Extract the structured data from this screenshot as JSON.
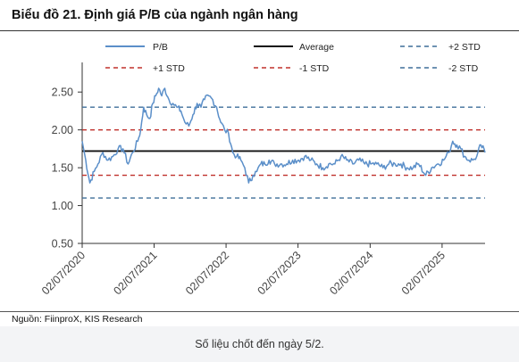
{
  "header": {
    "title": "Biểu đồ 21. Định giá P/B của ngành ngân hàng"
  },
  "source": "Nguồn: FiinproX, KIS Research",
  "caption": "Số liệu chốt đến ngày 5/2.",
  "colors": {
    "pb": "#5b8fc9",
    "average": "#111111",
    "plus2std": "#3f6f99",
    "plus1std": "#c0302b",
    "minus1std": "#c0302b",
    "minus2std": "#3f6f99",
    "axis": "#333333"
  },
  "chart_data": {
    "type": "line",
    "title": "Biểu đồ 21. Định giá P/B của ngành ngân hàng",
    "xlabel": "",
    "ylabel": "",
    "ylim": [
      0.5,
      2.75
    ],
    "yticks": [
      "0.50",
      "1.00",
      "1.50",
      "2.00",
      "2.50"
    ],
    "ytick_values": [
      0.5,
      1.0,
      1.5,
      2.0,
      2.5
    ],
    "xticks": [
      "02/07/2020",
      "02/07/2021",
      "02/07/2022",
      "02/07/2023",
      "02/07/2024",
      "02/07/2025"
    ],
    "xtick_values": [
      "2020-07-02",
      "2021-07-02",
      "2022-07-02",
      "2023-07-02",
      "2024-07-02",
      "2025-07-02"
    ],
    "xlim": [
      "2020-07-02",
      "2026-02-05"
    ],
    "grid": false,
    "legend_position": "top",
    "series": [
      {
        "name": "P/B",
        "style": "solid",
        "x": [
          "2020-07-02",
          "2020-07-20",
          "2020-08-10",
          "2020-09-01",
          "2020-09-20",
          "2020-10-15",
          "2020-11-10",
          "2020-12-05",
          "2020-12-31",
          "2021-01-25",
          "2021-02-20",
          "2021-03-15",
          "2021-04-10",
          "2021-04-25",
          "2021-05-10",
          "2021-05-25",
          "2021-06-10",
          "2021-06-25",
          "2021-07-10",
          "2021-07-25",
          "2021-08-10",
          "2021-08-25",
          "2021-09-15",
          "2021-10-05",
          "2021-10-25",
          "2021-11-15",
          "2021-12-05",
          "2021-12-25",
          "2022-01-15",
          "2022-02-05",
          "2022-02-25",
          "2022-03-15",
          "2022-04-05",
          "2022-04-25",
          "2022-05-15",
          "2022-06-05",
          "2022-06-25",
          "2022-07-15",
          "2022-08-05",
          "2022-08-25",
          "2022-09-15",
          "2022-10-05",
          "2022-10-25",
          "2022-11-15",
          "2022-12-05",
          "2022-12-25",
          "2023-01-15",
          "2023-02-05",
          "2023-03-05",
          "2023-04-05",
          "2023-05-05",
          "2023-06-05",
          "2023-07-05",
          "2023-08-05",
          "2023-09-05",
          "2023-10-05",
          "2023-11-05",
          "2023-12-05",
          "2024-01-05",
          "2024-02-05",
          "2024-03-05",
          "2024-04-05",
          "2024-05-05",
          "2024-06-05",
          "2024-07-05",
          "2024-08-05",
          "2024-09-05",
          "2024-10-05",
          "2024-11-05",
          "2024-12-05",
          "2025-01-05",
          "2025-02-05",
          "2025-03-05",
          "2025-04-10",
          "2025-05-10",
          "2025-06-10",
          "2025-07-10",
          "2025-08-05",
          "2025-08-25",
          "2025-09-15",
          "2025-10-05",
          "2025-10-25",
          "2025-11-15",
          "2025-12-05",
          "2025-12-25",
          "2026-01-15",
          "2026-02-05"
        ],
        "values": [
          1.85,
          1.6,
          1.3,
          1.45,
          1.55,
          1.7,
          1.6,
          1.65,
          1.75,
          1.75,
          1.55,
          1.7,
          1.85,
          2.0,
          2.3,
          2.2,
          2.15,
          2.35,
          2.45,
          2.55,
          2.45,
          2.55,
          2.4,
          2.35,
          2.3,
          2.25,
          2.1,
          2.05,
          2.2,
          2.35,
          2.3,
          2.4,
          2.45,
          2.4,
          2.3,
          2.1,
          2.0,
          1.95,
          1.7,
          1.65,
          1.6,
          1.5,
          1.3,
          1.4,
          1.45,
          1.55,
          1.55,
          1.6,
          1.55,
          1.55,
          1.55,
          1.6,
          1.6,
          1.65,
          1.6,
          1.55,
          1.5,
          1.55,
          1.55,
          1.65,
          1.6,
          1.55,
          1.6,
          1.55,
          1.55,
          1.55,
          1.5,
          1.55,
          1.55,
          1.55,
          1.5,
          1.5,
          1.55,
          1.4,
          1.5,
          1.55,
          1.6,
          1.7,
          1.85,
          1.8,
          1.75,
          1.65,
          1.6,
          1.6,
          1.65,
          1.8,
          1.7
        ]
      },
      {
        "name": "Average",
        "style": "solid",
        "value": 1.72
      },
      {
        "name": "+2 STD",
        "style": "dashed",
        "value": 2.3
      },
      {
        "name": "+1 STD",
        "style": "dashed",
        "value": 2.0
      },
      {
        "name": "-1 STD",
        "style": "dashed",
        "value": 1.4
      },
      {
        "name": "-2 STD",
        "style": "dashed",
        "value": 1.1
      }
    ]
  }
}
